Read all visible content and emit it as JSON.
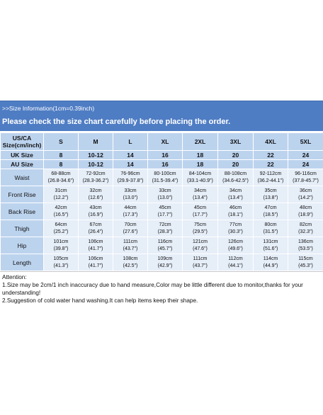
{
  "banner": {
    "info": ">>Size Information(1cm=0.39inch)",
    "notice": "Please check the size chart carefully before placing the order."
  },
  "header": {
    "label_line1": "US/CA",
    "label_line2": "Size(cm/inch)",
    "sizes": [
      "S",
      "M",
      "L",
      "XL",
      "2XL",
      "3XL",
      "4XL",
      "5XL"
    ]
  },
  "uk": {
    "label": "UK Size",
    "values": [
      "8",
      "10-12",
      "14",
      "16",
      "18",
      "20",
      "22",
      "24"
    ]
  },
  "au": {
    "label": "AU Size",
    "values": [
      "8",
      "10-12",
      "14",
      "16",
      "18",
      "20",
      "22",
      "24"
    ]
  },
  "rows": [
    {
      "label": "Waist",
      "cm": [
        "68-88cm",
        "72-92cm",
        "76-96cm",
        "80-100cm",
        "84-104cm",
        "88-108cm",
        "92-112cm",
        "96-116cm"
      ],
      "in": [
        "(26.8-34.6\")",
        "(28.3-36.2\")",
        "(29.9-37.8\")",
        "(31.5-39.4\")",
        "(33.1-40.9\")",
        "(34.6-42.5\")",
        "(36.2-44.1\")",
        "(37.8-45.7\")"
      ]
    },
    {
      "label": "Front Rise",
      "cm": [
        "31cm",
        "32cm",
        "33cm",
        "33cm",
        "34cm",
        "34cm",
        "35cm",
        "36cm"
      ],
      "in": [
        "(12.2\")",
        "(12.6\")",
        "(13.0\")",
        "(13.0\")",
        "(13.4\")",
        "(13.4\")",
        "(13.8\")",
        "(14.2\")"
      ]
    },
    {
      "label": "Back Rise",
      "cm": [
        "42cm",
        "43cm",
        "44cm",
        "45cm",
        "45cm",
        "46cm",
        "47cm",
        "48cm"
      ],
      "in": [
        "(16.5\")",
        "(16.9\")",
        "(17.3\")",
        "(17.7\")",
        "(17.7\")",
        "(18.1\")",
        "(18.5\")",
        "(18.9\")"
      ]
    },
    {
      "label": "Thigh",
      "cm": [
        "64cm",
        "67cm",
        "70cm",
        "72cm",
        "75cm",
        "77cm",
        "80cm",
        "82cm"
      ],
      "in": [
        "(25.2\")",
        "(26.4\")",
        "(27.6\")",
        "(28.3\")",
        "(29.5\")",
        "(30.3\")",
        "(31.5\")",
        "(32.3\")"
      ]
    },
    {
      "label": "Hip",
      "cm": [
        "101cm",
        "106cm",
        "111cm",
        "116cm",
        "121cm",
        "126cm",
        "131cm",
        "136cm"
      ],
      "in": [
        "(39.8\")",
        "(41.7\")",
        "(43.7\")",
        "(45.7\")",
        "(47.6\")",
        "(49.6\")",
        "(51.6\")",
        "(53.5\")"
      ]
    },
    {
      "label": "Length",
      "cm": [
        "105cm",
        "106cm",
        "108cm",
        "109cm",
        "111cm",
        "112cm",
        "114cm",
        "115cm"
      ],
      "in": [
        "(41.3\")",
        "(41.7\")",
        "(42.5\")",
        "(42.9\")",
        "(43.7\")",
        "(44.1\")",
        "(44.9\")",
        "(45.3\")"
      ]
    }
  ],
  "notes": {
    "title": "Attention:",
    "line1": "1.Size may be 2cm/1 inch inaccuracy due to hand measure,Color may be little different due to monitor,thanks for your understanding!",
    "line2": "2.Suggestion of cold water hand washing.It can help items keep their shape."
  }
}
